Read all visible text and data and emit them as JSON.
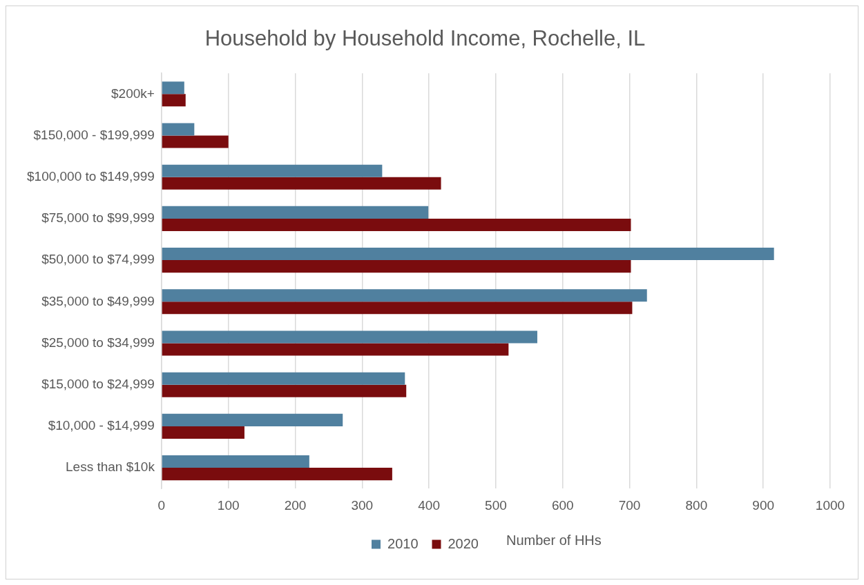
{
  "chart_data": {
    "type": "bar",
    "orientation": "horizontal",
    "title": "Household by Household Income, Rochelle, IL",
    "xlabel": "Number of HHs",
    "categories": [
      "$200k+",
      "$150,000 - $199,999",
      "$100,000 to $149,999",
      "$75,000 to $99,999",
      "$50,000 to $74,999",
      "$35,000 to $49,999",
      "$25,000 to $34,999",
      "$15,000 to $24,999",
      "$10,000 - $14,999",
      "Less than $10k"
    ],
    "series": [
      {
        "name": "2010",
        "color": "#50809f",
        "values": [
          34,
          49,
          330,
          399,
          916,
          726,
          562,
          364,
          271,
          221
        ]
      },
      {
        "name": "2020",
        "color": "#7a0c0e",
        "values": [
          36,
          100,
          418,
          702,
          702,
          704,
          519,
          366,
          124,
          345
        ]
      }
    ],
    "xlim": [
      0,
      1000
    ],
    "xticks": [
      0,
      100,
      200,
      300,
      400,
      500,
      600,
      700,
      800,
      900,
      1000
    ],
    "grid": "x",
    "legend": "bottom"
  }
}
